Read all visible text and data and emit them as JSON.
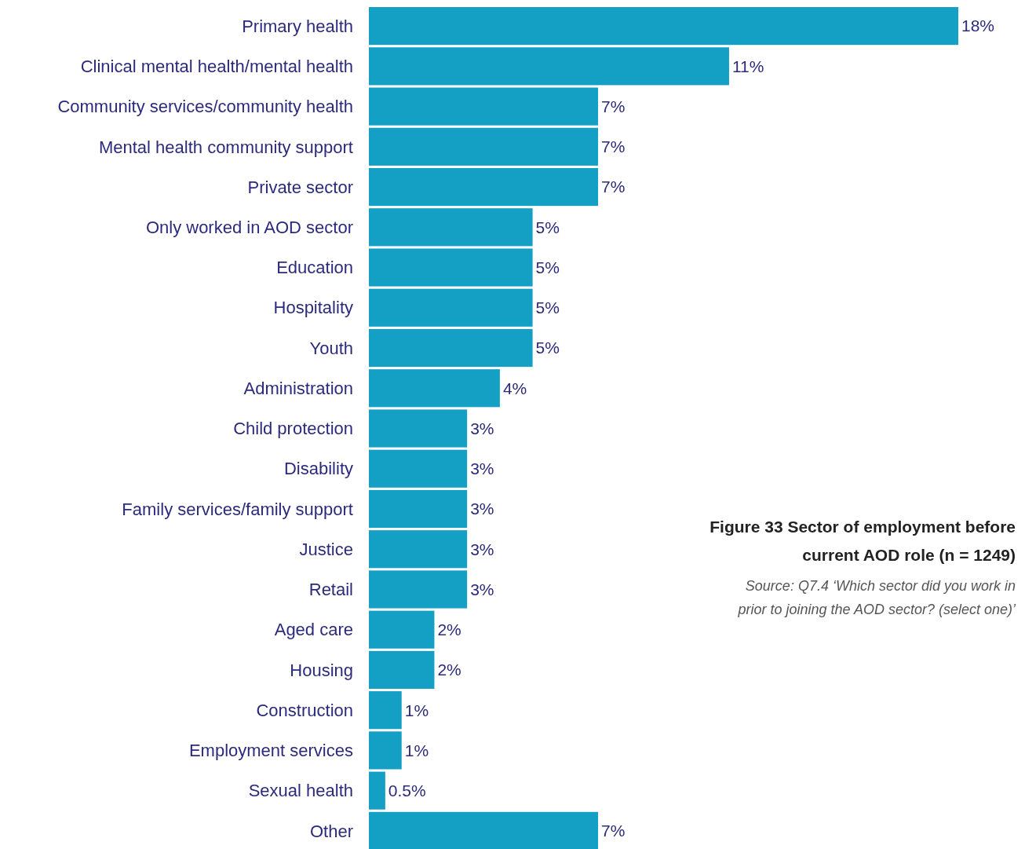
{
  "chart_data": {
    "type": "bar",
    "orientation": "horizontal",
    "title": "Figure 33 Sector of employment before current AOD role (n = 1249)",
    "categories": [
      "Primary health",
      "Clinical mental health/mental health",
      "Community services/community health",
      "Mental health community support",
      "Private sector",
      "Only worked in AOD sector",
      "Education",
      "Hospitality",
      "Youth",
      "Administration",
      "Child protection",
      "Disability",
      "Family services/family support",
      "Justice",
      "Retail",
      "Aged care",
      "Housing",
      "Construction",
      "Employment services",
      "Sexual health",
      "Other"
    ],
    "values": [
      18,
      11,
      7,
      7,
      7,
      5,
      5,
      5,
      5,
      4,
      3,
      3,
      3,
      3,
      3,
      2,
      2,
      1,
      1,
      0.5,
      7
    ],
    "value_labels": [
      "18%",
      "11%",
      "7%",
      "7%",
      "7%",
      "5%",
      "5%",
      "5%",
      "5%",
      "4%",
      "3%",
      "3%",
      "3%",
      "3%",
      "3%",
      "2%",
      "2%",
      "1%",
      "1%",
      "0.5%",
      "7%"
    ],
    "color": "#14a0c4",
    "annotations": [
      "Source: Q7.4 ‘Which sector did you work in prior to joining the AOD sector? (select one)’"
    ]
  }
}
